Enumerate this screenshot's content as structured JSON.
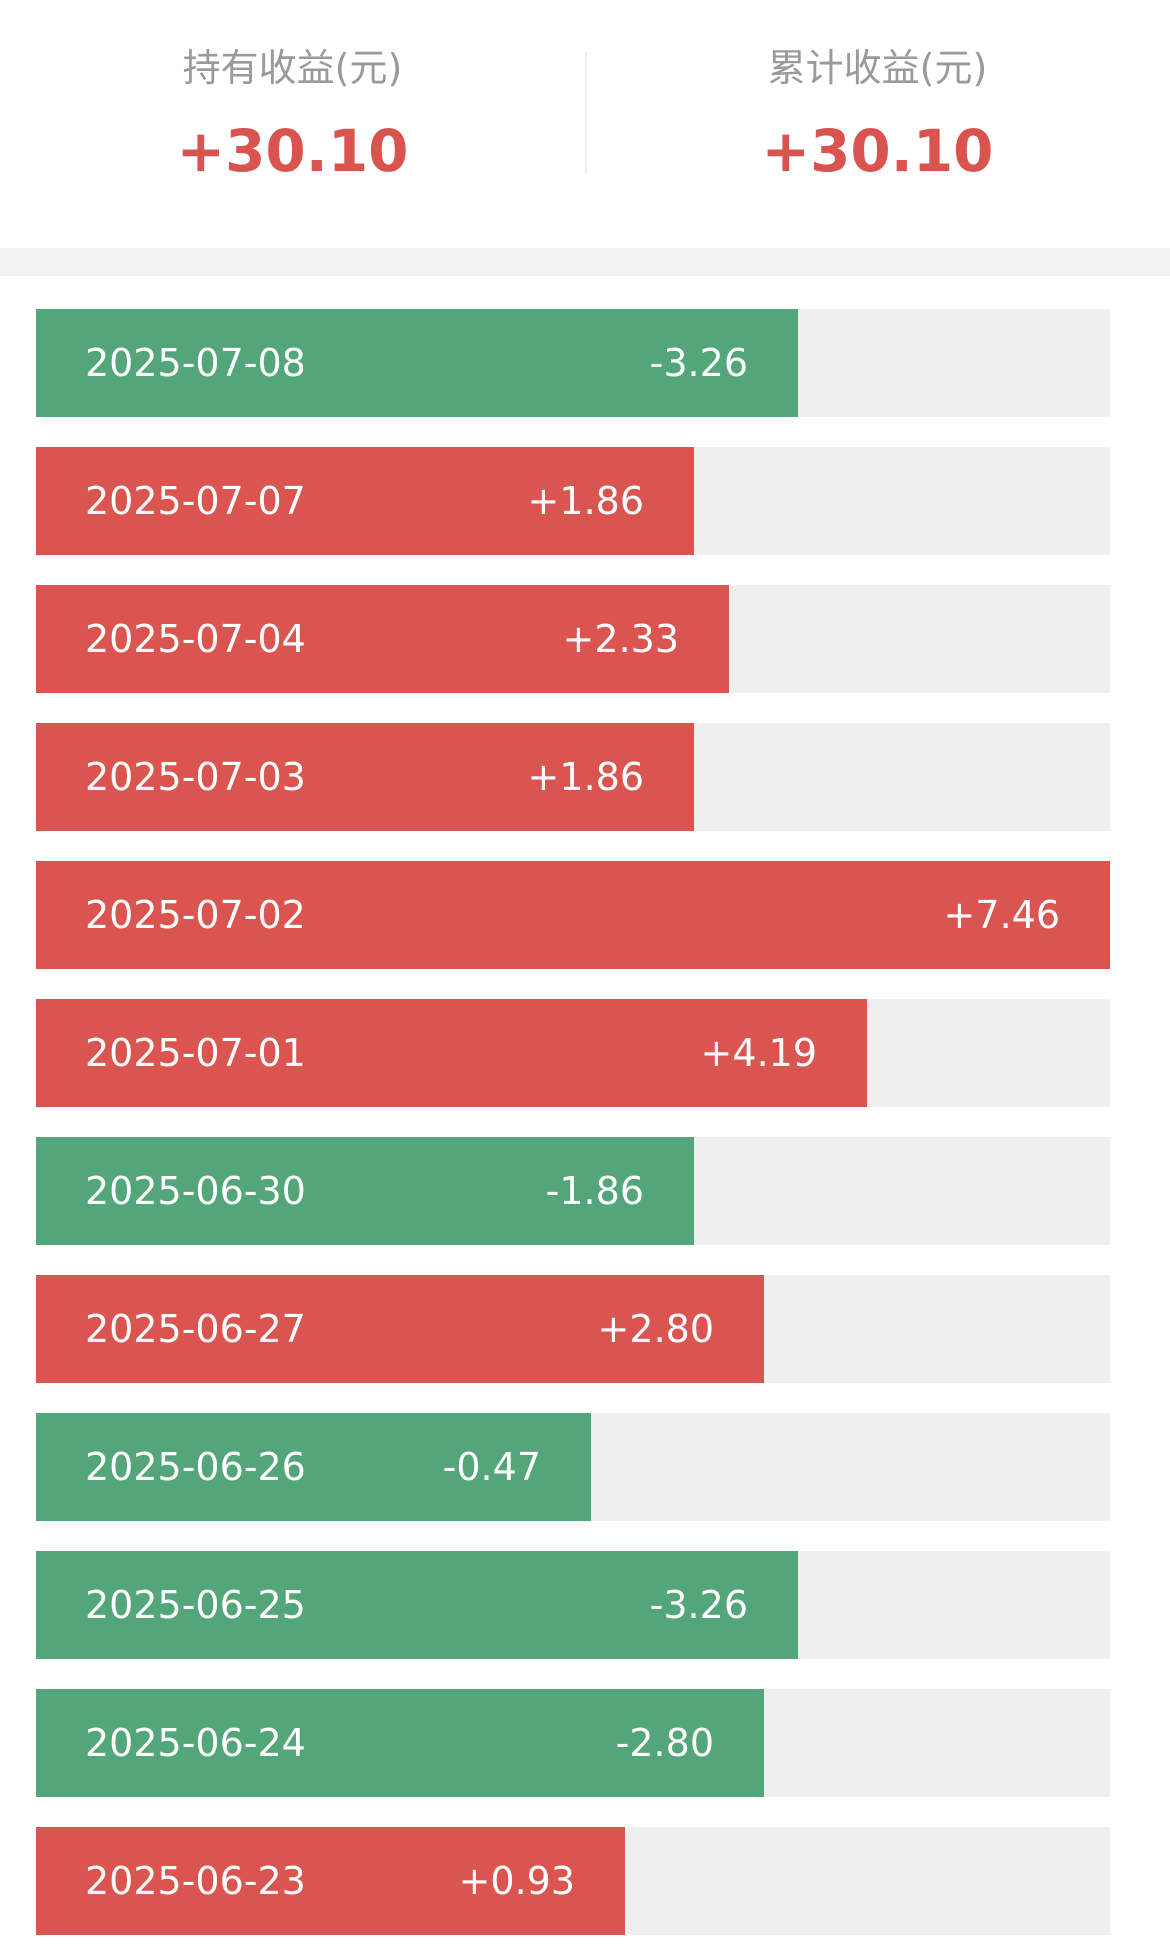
{
  "summary": {
    "holding": {
      "label": "持有收益(元)",
      "value": "+30.10"
    },
    "cumulative": {
      "label": "累计收益(元)",
      "value": "+30.10"
    }
  },
  "colors": {
    "gain": "#db5550",
    "loss": "#53a57a",
    "track": "#efefef",
    "label_gray": "#9a9a9a"
  },
  "daily_returns": [
    {
      "date": "2025-07-08",
      "amount": "-3.26",
      "value": -3.26
    },
    {
      "date": "2025-07-07",
      "amount": "+1.86",
      "value": 1.86
    },
    {
      "date": "2025-07-04",
      "amount": "+2.33",
      "value": 2.33
    },
    {
      "date": "2025-07-03",
      "amount": "+1.86",
      "value": 1.86
    },
    {
      "date": "2025-07-02",
      "amount": "+7.46",
      "value": 7.46
    },
    {
      "date": "2025-07-01",
      "amount": "+4.19",
      "value": 4.19
    },
    {
      "date": "2025-06-30",
      "amount": "-1.86",
      "value": -1.86
    },
    {
      "date": "2025-06-27",
      "amount": "+2.80",
      "value": 2.8
    },
    {
      "date": "2025-06-26",
      "amount": "-0.47",
      "value": -0.47
    },
    {
      "date": "2025-06-25",
      "amount": "-3.26",
      "value": -3.26
    },
    {
      "date": "2025-06-24",
      "amount": "-2.80",
      "value": -2.8
    },
    {
      "date": "2025-06-23",
      "amount": "+0.93",
      "value": 0.93
    }
  ]
}
